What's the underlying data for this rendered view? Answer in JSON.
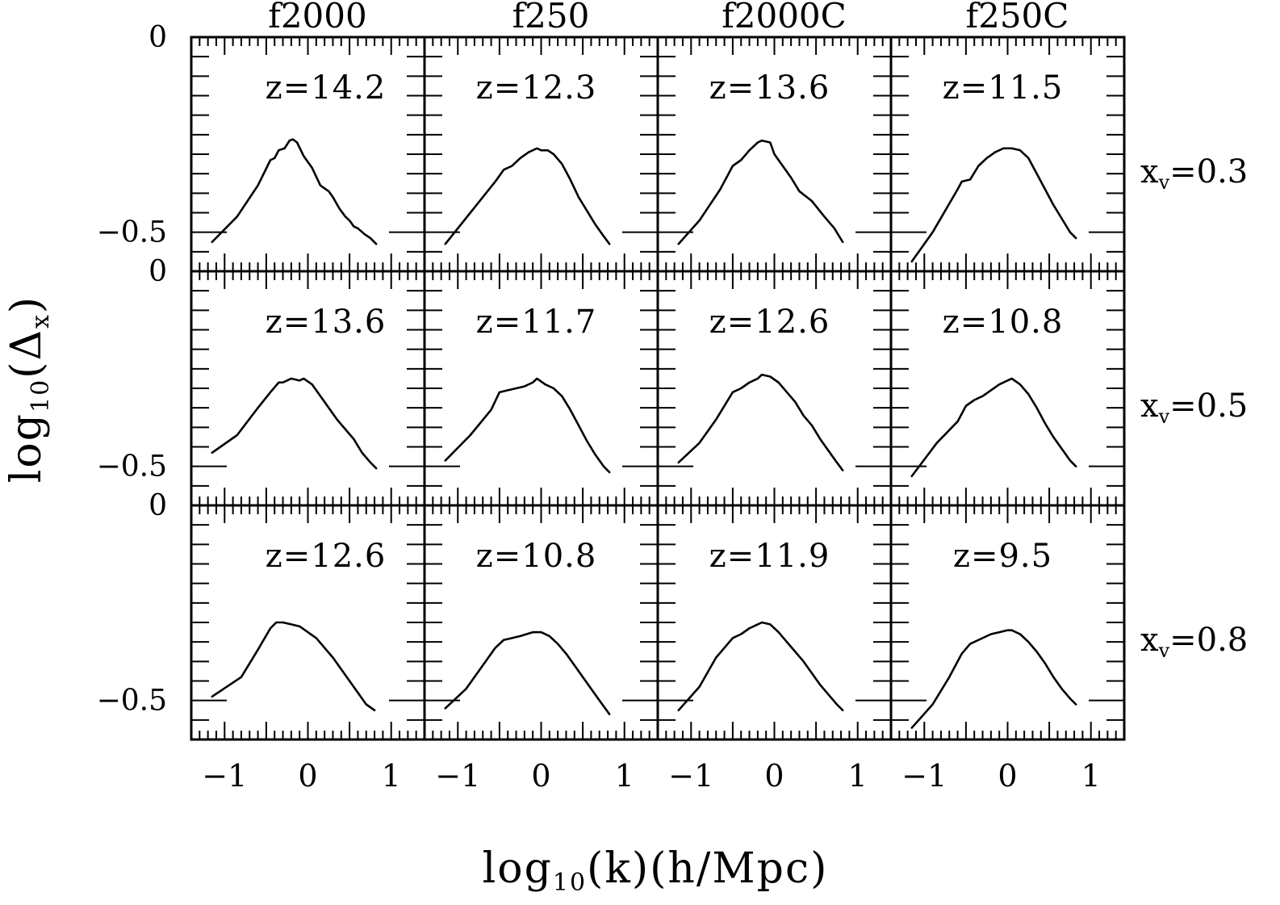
{
  "chart_data": {
    "type": "line",
    "xlabel": "log10(k)(h/Mpc)",
    "ylabel": "log10(Δx)",
    "xlim": [
      -1.4,
      1.4
    ],
    "ylim": [
      -0.6,
      0.0
    ],
    "x_ticks": [
      "−1",
      "0",
      "1"
    ],
    "y_ticks": [
      "0",
      "−0.5"
    ],
    "column_titles": [
      "f2000",
      "f250",
      "f2000C",
      "f250C"
    ],
    "row_labels": [
      {
        "sym": "x",
        "sub": "v",
        "val": "=0.3"
      },
      {
        "sym": "x",
        "sub": "v",
        "val": "=0.5"
      },
      {
        "sym": "x",
        "sub": "v",
        "val": "=0.8"
      }
    ],
    "grid": false,
    "panels": [
      {
        "row": 0,
        "col": 0,
        "label": "z=14.2",
        "x": [
          -1.15,
          -0.85,
          -0.6,
          -0.45,
          -0.4,
          -0.35,
          -0.28,
          -0.22,
          -0.18,
          -0.13,
          -0.05,
          0.05,
          0.15,
          0.25,
          0.3,
          0.38,
          0.45,
          0.5,
          0.55,
          0.6,
          0.68,
          0.75,
          0.82
        ],
        "y": [
          -0.525,
          -0.46,
          -0.38,
          -0.315,
          -0.31,
          -0.29,
          -0.285,
          -0.265,
          -0.262,
          -0.27,
          -0.305,
          -0.335,
          -0.38,
          -0.395,
          -0.41,
          -0.44,
          -0.46,
          -0.47,
          -0.485,
          -0.49,
          -0.505,
          -0.515,
          -0.53
        ]
      },
      {
        "row": 0,
        "col": 1,
        "label": "z=12.3",
        "x": [
          -1.15,
          -0.85,
          -0.55,
          -0.45,
          -0.35,
          -0.25,
          -0.15,
          -0.05,
          0.0,
          0.08,
          0.15,
          0.25,
          0.35,
          0.45,
          0.55,
          0.65,
          0.75,
          0.82
        ],
        "y": [
          -0.53,
          -0.45,
          -0.37,
          -0.34,
          -0.33,
          -0.31,
          -0.295,
          -0.285,
          -0.29,
          -0.29,
          -0.3,
          -0.325,
          -0.365,
          -0.41,
          -0.445,
          -0.48,
          -0.51,
          -0.53
        ]
      },
      {
        "row": 0,
        "col": 2,
        "label": "z=13.6",
        "x": [
          -1.15,
          -0.9,
          -0.65,
          -0.5,
          -0.4,
          -0.3,
          -0.2,
          -0.15,
          -0.05,
          0.0,
          0.1,
          0.2,
          0.3,
          0.45,
          0.6,
          0.72,
          0.82
        ],
        "y": [
          -0.53,
          -0.47,
          -0.39,
          -0.33,
          -0.315,
          -0.29,
          -0.27,
          -0.265,
          -0.27,
          -0.3,
          -0.33,
          -0.36,
          -0.395,
          -0.42,
          -0.46,
          -0.49,
          -0.525
        ]
      },
      {
        "row": 0,
        "col": 3,
        "label": "z=11.5",
        "x": [
          -1.15,
          -0.9,
          -0.6,
          -0.55,
          -0.45,
          -0.35,
          -0.25,
          -0.15,
          -0.05,
          0.05,
          0.15,
          0.25,
          0.35,
          0.45,
          0.55,
          0.65,
          0.75,
          0.82
        ],
        "y": [
          -0.575,
          -0.5,
          -0.39,
          -0.37,
          -0.365,
          -0.33,
          -0.31,
          -0.295,
          -0.285,
          -0.285,
          -0.29,
          -0.31,
          -0.35,
          -0.39,
          -0.43,
          -0.465,
          -0.5,
          -0.515
        ]
      },
      {
        "row": 1,
        "col": 0,
        "label": "z=13.6",
        "x": [
          -1.15,
          -0.85,
          -0.6,
          -0.45,
          -0.35,
          -0.3,
          -0.2,
          -0.1,
          -0.05,
          0.05,
          0.15,
          0.25,
          0.35,
          0.45,
          0.55,
          0.65,
          0.75,
          0.82
        ],
        "y": [
          -0.465,
          -0.42,
          -0.35,
          -0.31,
          -0.285,
          -0.285,
          -0.275,
          -0.28,
          -0.275,
          -0.29,
          -0.32,
          -0.35,
          -0.38,
          -0.405,
          -0.43,
          -0.465,
          -0.49,
          -0.505
        ]
      },
      {
        "row": 1,
        "col": 1,
        "label": "z=11.7",
        "x": [
          -1.15,
          -0.85,
          -0.6,
          -0.5,
          -0.4,
          -0.3,
          -0.2,
          -0.1,
          -0.05,
          0.05,
          0.15,
          0.25,
          0.35,
          0.45,
          0.55,
          0.65,
          0.75,
          0.82
        ],
        "y": [
          -0.485,
          -0.42,
          -0.355,
          -0.31,
          -0.305,
          -0.3,
          -0.295,
          -0.285,
          -0.275,
          -0.29,
          -0.3,
          -0.32,
          -0.355,
          -0.395,
          -0.435,
          -0.47,
          -0.5,
          -0.515
        ]
      },
      {
        "row": 1,
        "col": 2,
        "label": "z=12.6",
        "x": [
          -1.15,
          -0.9,
          -0.7,
          -0.5,
          -0.4,
          -0.3,
          -0.2,
          -0.15,
          -0.05,
          0.05,
          0.15,
          0.25,
          0.35,
          0.45,
          0.55,
          0.65,
          0.75,
          0.82
        ],
        "y": [
          -0.49,
          -0.44,
          -0.38,
          -0.31,
          -0.3,
          -0.285,
          -0.275,
          -0.265,
          -0.27,
          -0.285,
          -0.31,
          -0.335,
          -0.37,
          -0.395,
          -0.43,
          -0.46,
          -0.49,
          -0.51
        ]
      },
      {
        "row": 1,
        "col": 3,
        "label": "z=10.8",
        "x": [
          -1.15,
          -0.85,
          -0.6,
          -0.5,
          -0.4,
          -0.3,
          -0.2,
          -0.1,
          0.0,
          0.05,
          0.15,
          0.25,
          0.35,
          0.45,
          0.55,
          0.65,
          0.75,
          0.82
        ],
        "y": [
          -0.525,
          -0.44,
          -0.385,
          -0.345,
          -0.33,
          -0.32,
          -0.305,
          -0.29,
          -0.28,
          -0.275,
          -0.29,
          -0.315,
          -0.35,
          -0.39,
          -0.425,
          -0.455,
          -0.485,
          -0.5
        ]
      },
      {
        "row": 2,
        "col": 0,
        "label": "z=12.6",
        "x": [
          -1.15,
          -0.8,
          -0.6,
          -0.45,
          -0.38,
          -0.3,
          -0.2,
          -0.1,
          0.0,
          0.1,
          0.2,
          0.3,
          0.4,
          0.5,
          0.6,
          0.7,
          0.8
        ],
        "y": [
          -0.49,
          -0.44,
          -0.37,
          -0.315,
          -0.3,
          -0.3,
          -0.305,
          -0.31,
          -0.325,
          -0.34,
          -0.365,
          -0.39,
          -0.42,
          -0.45,
          -0.48,
          -0.51,
          -0.525
        ]
      },
      {
        "row": 2,
        "col": 1,
        "label": "z=10.8",
        "x": [
          -1.15,
          -0.9,
          -0.7,
          -0.55,
          -0.45,
          -0.35,
          -0.25,
          -0.1,
          0.0,
          0.1,
          0.2,
          0.3,
          0.4,
          0.5,
          0.6,
          0.7,
          0.82
        ],
        "y": [
          -0.52,
          -0.47,
          -0.41,
          -0.365,
          -0.345,
          -0.34,
          -0.335,
          -0.325,
          -0.325,
          -0.335,
          -0.355,
          -0.38,
          -0.41,
          -0.44,
          -0.47,
          -0.5,
          -0.535
        ]
      },
      {
        "row": 2,
        "col": 2,
        "label": "z=11.9",
        "x": [
          -1.15,
          -0.9,
          -0.7,
          -0.5,
          -0.4,
          -0.3,
          -0.2,
          -0.15,
          -0.05,
          0.05,
          0.15,
          0.25,
          0.35,
          0.45,
          0.55,
          0.65,
          0.75,
          0.82
        ],
        "y": [
          -0.525,
          -0.465,
          -0.39,
          -0.34,
          -0.33,
          -0.315,
          -0.305,
          -0.3,
          -0.305,
          -0.325,
          -0.35,
          -0.375,
          -0.4,
          -0.43,
          -0.46,
          -0.485,
          -0.51,
          -0.525
        ]
      },
      {
        "row": 2,
        "col": 3,
        "label": "z=9.5",
        "x": [
          -1.15,
          -0.9,
          -0.7,
          -0.55,
          -0.45,
          -0.35,
          -0.2,
          -0.1,
          0.0,
          0.05,
          0.15,
          0.25,
          0.35,
          0.45,
          0.55,
          0.65,
          0.75,
          0.82
        ],
        "y": [
          -0.57,
          -0.51,
          -0.44,
          -0.38,
          -0.355,
          -0.345,
          -0.33,
          -0.325,
          -0.32,
          -0.32,
          -0.33,
          -0.35,
          -0.375,
          -0.405,
          -0.44,
          -0.47,
          -0.495,
          -0.51
        ]
      }
    ]
  }
}
